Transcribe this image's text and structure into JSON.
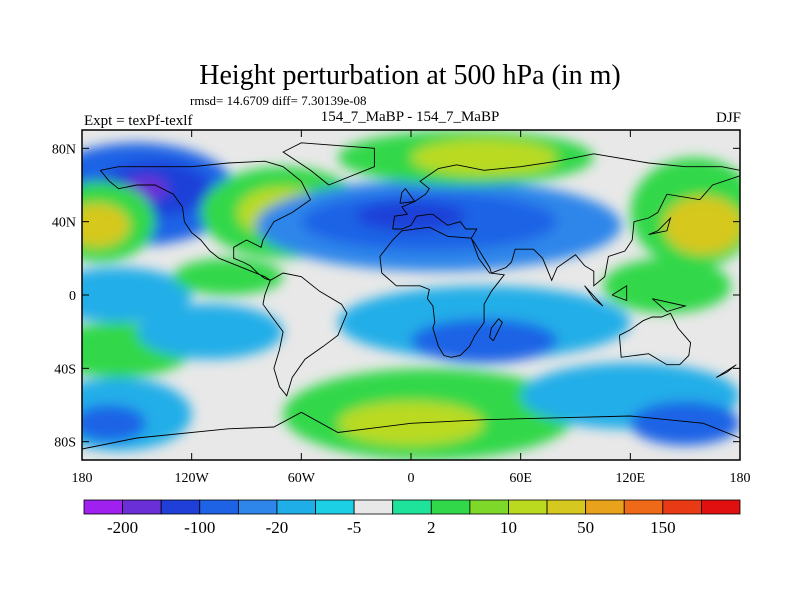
{
  "chart_data": {
    "type": "heatmap",
    "title": "Height perturbation at 500 hPa (in m)",
    "stats": "rmsd= 14.6709 diff= 7.30139e-08",
    "left_label": "Expt = texPf-texlf",
    "center_label": "154_7_MaBP - 154_7_MaBP",
    "right_label": "DJF",
    "x_ticks": [
      {
        "lon": -180,
        "label": "180"
      },
      {
        "lon": -120,
        "label": "120W"
      },
      {
        "lon": -60,
        "label": "60W"
      },
      {
        "lon": 0,
        "label": "0"
      },
      {
        "lon": 60,
        "label": "60E"
      },
      {
        "lon": 120,
        "label": "120E"
      },
      {
        "lon": 180,
        "label": "180"
      }
    ],
    "y_ticks": [
      {
        "lat": 80,
        "label": "80N"
      },
      {
        "lat": 40,
        "label": "40N"
      },
      {
        "lat": 0,
        "label": "0"
      },
      {
        "lat": -40,
        "label": "40S"
      },
      {
        "lat": -80,
        "label": "80S"
      }
    ],
    "xlim": [
      -180,
      180
    ],
    "ylim": [
      -90,
      90
    ],
    "colorbar": {
      "colors": [
        "#a020f0",
        "#6a2fd6",
        "#1f3fd8",
        "#1e63e6",
        "#2e86ea",
        "#20aee8",
        "#1ccfe4",
        "#e8e8e8",
        "#1ee39a",
        "#30d84a",
        "#7dd82a",
        "#bada20",
        "#d6c81e",
        "#e8a21c",
        "#ee6a18",
        "#e83a14",
        "#e01010"
      ],
      "labels": [
        "-200",
        "-100",
        "-20",
        "-5",
        "2",
        "10",
        "50",
        "150"
      ]
    },
    "field_blobs": [
      {
        "lon": -150,
        "lat": 55,
        "rx": 55,
        "ry": 28,
        "level": 3
      },
      {
        "lon": -140,
        "lat": 58,
        "rx": 30,
        "ry": 15,
        "level": 2
      },
      {
        "lon": -145,
        "lat": 58,
        "rx": 12,
        "ry": 7,
        "level": 1
      },
      {
        "lon": -170,
        "lat": 40,
        "rx": 30,
        "ry": 22,
        "level": 9
      },
      {
        "lon": -172,
        "lat": 38,
        "rx": 18,
        "ry": 12,
        "level": 12
      },
      {
        "lon": -70,
        "lat": 45,
        "rx": 45,
        "ry": 25,
        "level": 9
      },
      {
        "lon": -70,
        "lat": 45,
        "rx": 25,
        "ry": 14,
        "level": 11
      },
      {
        "lon": 15,
        "lat": 38,
        "rx": 100,
        "ry": 25,
        "level": 4
      },
      {
        "lon": 10,
        "lat": 40,
        "rx": 70,
        "ry": 16,
        "level": 3
      },
      {
        "lon": 0,
        "lat": 43,
        "rx": 30,
        "ry": 8,
        "level": 2
      },
      {
        "lon": 30,
        "lat": 75,
        "rx": 70,
        "ry": 15,
        "level": 9
      },
      {
        "lon": 40,
        "lat": 75,
        "rx": 40,
        "ry": 10,
        "level": 11
      },
      {
        "lon": 155,
        "lat": 45,
        "rx": 35,
        "ry": 30,
        "level": 9
      },
      {
        "lon": 160,
        "lat": 38,
        "rx": 22,
        "ry": 16,
        "level": 12
      },
      {
        "lon": -160,
        "lat": 0,
        "rx": 40,
        "ry": 15,
        "level": 5
      },
      {
        "lon": -100,
        "lat": 10,
        "rx": 30,
        "ry": 10,
        "level": 9
      },
      {
        "lon": 40,
        "lat": -15,
        "rx": 80,
        "ry": 20,
        "level": 5
      },
      {
        "lon": 40,
        "lat": -25,
        "rx": 40,
        "ry": 12,
        "level": 3
      },
      {
        "lon": 140,
        "lat": 5,
        "rx": 35,
        "ry": 15,
        "level": 9
      },
      {
        "lon": -160,
        "lat": -30,
        "rx": 40,
        "ry": 15,
        "level": 9
      },
      {
        "lon": -160,
        "lat": -65,
        "rx": 40,
        "ry": 20,
        "level": 5
      },
      {
        "lon": -165,
        "lat": -70,
        "rx": 20,
        "ry": 10,
        "level": 3
      },
      {
        "lon": 10,
        "lat": -65,
        "rx": 80,
        "ry": 25,
        "level": 9
      },
      {
        "lon": 0,
        "lat": -70,
        "rx": 40,
        "ry": 12,
        "level": 11
      },
      {
        "lon": 120,
        "lat": -55,
        "rx": 60,
        "ry": 18,
        "level": 5
      },
      {
        "lon": 150,
        "lat": -70,
        "rx": 30,
        "ry": 12,
        "level": 3
      },
      {
        "lon": -110,
        "lat": -20,
        "rx": 40,
        "ry": 15,
        "level": 5
      }
    ],
    "coastlines": [
      [
        [
          -170,
          68
        ],
        [
          -160,
          70
        ],
        [
          -140,
          70
        ],
        [
          -120,
          70
        ],
        [
          -100,
          72
        ],
        [
          -80,
          73
        ],
        [
          -70,
          70
        ],
        [
          -60,
          62
        ],
        [
          -55,
          52
        ],
        [
          -65,
          45
        ],
        [
          -75,
          40
        ],
        [
          -78,
          35
        ],
        [
          -81,
          30
        ],
        [
          -82,
          26
        ],
        [
          -90,
          30
        ],
        [
          -97,
          26
        ],
        [
          -97,
          20
        ],
        [
          -92,
          18
        ],
        [
          -88,
          16
        ],
        [
          -84,
          12
        ],
        [
          -80,
          9
        ],
        [
          -77,
          8
        ],
        [
          -80,
          10
        ],
        [
          -90,
          14
        ],
        [
          -105,
          20
        ],
        [
          -110,
          24
        ],
        [
          -115,
          30
        ],
        [
          -120,
          34
        ],
        [
          -124,
          40
        ],
        [
          -125,
          48
        ],
        [
          -130,
          55
        ],
        [
          -140,
          60
        ],
        [
          -150,
          60
        ],
        [
          -160,
          58
        ],
        [
          -165,
          62
        ],
        [
          -170,
          68
        ]
      ],
      [
        [
          -77,
          8
        ],
        [
          -70,
          12
        ],
        [
          -60,
          10
        ],
        [
          -50,
          2
        ],
        [
          -38,
          -5
        ],
        [
          -35,
          -10
        ],
        [
          -40,
          -22
        ],
        [
          -48,
          -28
        ],
        [
          -58,
          -35
        ],
        [
          -65,
          -45
        ],
        [
          -68,
          -55
        ],
        [
          -72,
          -50
        ],
        [
          -75,
          -40
        ],
        [
          -72,
          -30
        ],
        [
          -70,
          -20
        ],
        [
          -76,
          -12
        ],
        [
          -81,
          -5
        ],
        [
          -80,
          0
        ],
        [
          -77,
          8
        ]
      ],
      [
        [
          -10,
          36
        ],
        [
          -9,
          43
        ],
        [
          -2,
          44
        ],
        [
          -5,
          48
        ],
        [
          2,
          51
        ],
        [
          8,
          55
        ],
        [
          10,
          58
        ],
        [
          5,
          62
        ],
        [
          15,
          69
        ],
        [
          25,
          71
        ],
        [
          40,
          68
        ],
        [
          60,
          70
        ],
        [
          80,
          73
        ],
        [
          100,
          77
        ],
        [
          130,
          72
        ],
        [
          150,
          70
        ],
        [
          170,
          70
        ],
        [
          180,
          68
        ],
        [
          180,
          65
        ],
        [
          165,
          60
        ],
        [
          158,
          52
        ],
        [
          140,
          55
        ],
        [
          135,
          45
        ],
        [
          130,
          42
        ],
        [
          122,
          40
        ],
        [
          121,
          30
        ],
        [
          117,
          24
        ],
        [
          108,
          21
        ],
        [
          106,
          10
        ],
        [
          100,
          5
        ],
        [
          100,
          13
        ],
        [
          95,
          16
        ],
        [
          90,
          22
        ],
        [
          80,
          15
        ],
        [
          77,
          8
        ],
        [
          72,
          20
        ],
        [
          67,
          25
        ],
        [
          57,
          25
        ],
        [
          55,
          18
        ],
        [
          52,
          15
        ],
        [
          44,
          12
        ],
        [
          43,
          15
        ],
        [
          35,
          28
        ],
        [
          33,
          31
        ],
        [
          36,
          36
        ],
        [
          30,
          36
        ],
        [
          27,
          40
        ],
        [
          20,
          38
        ],
        [
          12,
          44
        ],
        [
          10,
          44
        ],
        [
          3,
          43
        ],
        [
          0,
          38
        ],
        [
          -5,
          36
        ],
        [
          -10,
          36
        ]
      ],
      [
        [
          -17,
          21
        ],
        [
          -16,
          12
        ],
        [
          -8,
          5
        ],
        [
          5,
          5
        ],
        [
          10,
          3
        ],
        [
          9,
          -2
        ],
        [
          12,
          -6
        ],
        [
          13,
          -15
        ],
        [
          12,
          -18
        ],
        [
          15,
          -28
        ],
        [
          18,
          -33
        ],
        [
          22,
          -34
        ],
        [
          27,
          -33
        ],
        [
          32,
          -28
        ],
        [
          35,
          -22
        ],
        [
          40,
          -15
        ],
        [
          40,
          -5
        ],
        [
          44,
          2
        ],
        [
          51,
          11
        ],
        [
          43,
          12
        ],
        [
          37,
          20
        ],
        [
          33,
          31
        ],
        [
          20,
          32
        ],
        [
          10,
          37
        ],
        [
          -5,
          35
        ],
        [
          -10,
          30
        ],
        [
          -17,
          21
        ]
      ],
      [
        [
          114,
          -22
        ],
        [
          120,
          -19
        ],
        [
          127,
          -14
        ],
        [
          132,
          -12
        ],
        [
          137,
          -12
        ],
        [
          142,
          -10
        ],
        [
          146,
          -18
        ],
        [
          153,
          -26
        ],
        [
          152,
          -33
        ],
        [
          147,
          -38
        ],
        [
          140,
          -38
        ],
        [
          135,
          -35
        ],
        [
          130,
          -32
        ],
        [
          115,
          -34
        ],
        [
          114,
          -22
        ]
      ],
      [
        [
          -60,
          -64
        ],
        [
          -40,
          -75
        ],
        [
          0,
          -70
        ],
        [
          40,
          -68
        ],
        [
          80,
          -67
        ],
        [
          120,
          -66
        ],
        [
          160,
          -70
        ],
        [
          180,
          -78
        ],
        [
          180,
          -90
        ],
        [
          -180,
          -90
        ],
        [
          -180,
          -84
        ],
        [
          -150,
          -78
        ],
        [
          -100,
          -73
        ],
        [
          -75,
          -72
        ],
        [
          -60,
          -64
        ]
      ],
      [
        [
          -45,
          60
        ],
        [
          -20,
          70
        ],
        [
          -20,
          80
        ],
        [
          -60,
          83
        ],
        [
          -70,
          78
        ],
        [
          -55,
          68
        ],
        [
          -45,
          60
        ]
      ],
      [
        [
          45,
          -25
        ],
        [
          50,
          -15
        ],
        [
          48,
          -13
        ],
        [
          44,
          -18
        ],
        [
          43,
          -23
        ],
        [
          45,
          -25
        ]
      ],
      [
        [
          -6,
          50
        ],
        [
          2,
          51
        ],
        [
          -3,
          58
        ],
        [
          -5,
          56
        ],
        [
          -6,
          50
        ]
      ],
      [
        [
          95,
          5
        ],
        [
          105,
          -6
        ],
        [
          100,
          -2
        ],
        [
          95,
          5
        ]
      ],
      [
        [
          110,
          0
        ],
        [
          118,
          5
        ],
        [
          118,
          -3
        ],
        [
          110,
          0
        ]
      ],
      [
        [
          132,
          -2
        ],
        [
          150,
          -6
        ],
        [
          140,
          -9
        ],
        [
          132,
          -2
        ]
      ],
      [
        [
          130,
          33
        ],
        [
          140,
          35
        ],
        [
          142,
          42
        ],
        [
          135,
          35
        ],
        [
          130,
          33
        ]
      ],
      [
        [
          167,
          -45
        ],
        [
          178,
          -38
        ],
        [
          173,
          -42
        ],
        [
          167,
          -45
        ]
      ]
    ]
  }
}
